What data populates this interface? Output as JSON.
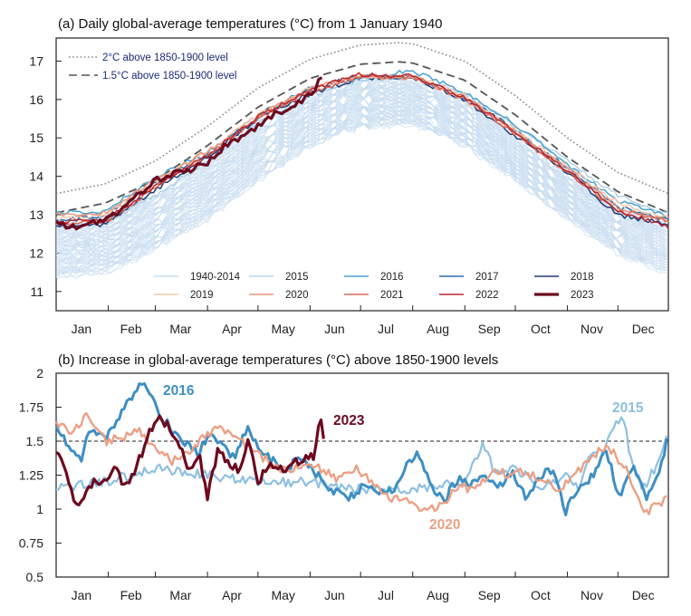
{
  "chart_data": [
    {
      "type": "line",
      "title": "(a) Daily global-average temperatures (°C) from 1 January 1940",
      "xlabel": "",
      "ylabel": "°C",
      "ylim": [
        10.5,
        17.6
      ],
      "grid": false,
      "month_labels": [
        "Jan",
        "Feb",
        "Mar",
        "Apr",
        "May",
        "Jun",
        "Jul",
        "Aug",
        "Sep",
        "Oct",
        "Nov",
        "Dec"
      ],
      "y_ticks": [
        "11",
        "12",
        "13",
        "14",
        "15",
        "16",
        "17"
      ],
      "y_tick_values": [
        11,
        12,
        13,
        14,
        15,
        16,
        17
      ],
      "reference_lines": [
        {
          "name": "2°C above 1850-1900 level",
          "style": "dotted",
          "color": "#8a8a8a",
          "day_of_year": [
            1,
            30,
            60,
            91,
            121,
            152,
            182,
            205,
            213,
            244,
            274,
            305,
            335,
            365
          ],
          "values": [
            13.55,
            13.8,
            14.4,
            15.3,
            16.3,
            17.05,
            17.42,
            17.48,
            17.45,
            17.0,
            16.1,
            15.0,
            14.1,
            13.55
          ]
        },
        {
          "name": "1.5°C above 1850-1900 level",
          "style": "dashed",
          "color": "#555555",
          "day_of_year": [
            1,
            30,
            60,
            91,
            121,
            152,
            182,
            205,
            213,
            244,
            274,
            305,
            335,
            365
          ],
          "values": [
            13.05,
            13.3,
            13.9,
            14.8,
            15.8,
            16.55,
            16.92,
            16.98,
            16.95,
            16.5,
            15.6,
            14.5,
            13.6,
            13.05
          ]
        }
      ],
      "envelope_1940_2014": {
        "name": "1940-2014",
        "color": "#c9def0",
        "day_of_year": [
          1,
          30,
          60,
          91,
          121,
          152,
          182,
          213,
          244,
          274,
          305,
          335,
          365
        ],
        "low": [
          11.4,
          11.5,
          12.1,
          12.9,
          13.9,
          14.8,
          15.3,
          15.35,
          14.8,
          13.9,
          12.9,
          12.0,
          11.45
        ],
        "high": [
          12.8,
          12.9,
          13.5,
          14.4,
          15.4,
          16.1,
          16.5,
          16.5,
          16.0,
          15.0,
          14.0,
          13.2,
          12.8
        ]
      },
      "series": [
        {
          "name": "2015",
          "color": "#a9cde6",
          "width": 1.3,
          "day_of_year": [
            1,
            30,
            60,
            91,
            121,
            152,
            182,
            213,
            244,
            274,
            305,
            335,
            365
          ],
          "values": [
            12.7,
            12.8,
            13.5,
            14.4,
            15.4,
            16.1,
            16.5,
            16.6,
            16.15,
            15.3,
            14.4,
            13.5,
            13.0
          ]
        },
        {
          "name": "2016",
          "color": "#4aa2d2",
          "width": 1.5,
          "day_of_year": [
            1,
            30,
            60,
            91,
            121,
            152,
            182,
            213,
            244,
            274,
            305,
            335,
            365
          ],
          "values": [
            13.05,
            13.1,
            13.95,
            14.65,
            15.5,
            16.3,
            16.55,
            16.75,
            16.2,
            15.35,
            14.3,
            13.35,
            12.95
          ]
        },
        {
          "name": "2017",
          "color": "#2d6fb0",
          "width": 1.5,
          "day_of_year": [
            1,
            30,
            60,
            91,
            121,
            152,
            182,
            213,
            244,
            274,
            305,
            335,
            365
          ],
          "values": [
            12.85,
            12.95,
            13.8,
            14.6,
            15.6,
            16.3,
            16.6,
            16.6,
            16.05,
            15.2,
            14.2,
            13.2,
            12.85
          ]
        },
        {
          "name": "2018",
          "color": "#1c3d7a",
          "width": 1.5,
          "day_of_year": [
            1,
            30,
            60,
            91,
            121,
            152,
            182,
            213,
            244,
            274,
            305,
            335,
            365
          ],
          "values": [
            12.7,
            12.75,
            13.65,
            14.5,
            15.5,
            16.15,
            16.55,
            16.55,
            16.0,
            15.05,
            14.1,
            13.0,
            12.75
          ]
        },
        {
          "name": "2019",
          "color": "#f6c9ad",
          "width": 1.5,
          "day_of_year": [
            1,
            30,
            60,
            91,
            121,
            152,
            182,
            213,
            244,
            274,
            305,
            335,
            365
          ],
          "values": [
            12.9,
            12.95,
            13.85,
            14.65,
            15.6,
            16.3,
            16.6,
            16.6,
            16.1,
            15.2,
            14.25,
            13.3,
            12.9
          ]
        },
        {
          "name": "2020",
          "color": "#e9967a",
          "width": 1.5,
          "day_of_year": [
            1,
            30,
            60,
            91,
            121,
            152,
            182,
            213,
            244,
            274,
            305,
            335,
            365
          ],
          "values": [
            13.0,
            13.05,
            13.9,
            14.65,
            15.55,
            16.3,
            16.6,
            16.55,
            16.0,
            15.15,
            14.2,
            13.2,
            12.85
          ]
        },
        {
          "name": "2021",
          "color": "#dc6a5a",
          "width": 1.5,
          "day_of_year": [
            1,
            30,
            60,
            91,
            121,
            152,
            182,
            213,
            244,
            274,
            305,
            335,
            365
          ],
          "values": [
            12.75,
            12.8,
            13.7,
            14.55,
            15.5,
            16.2,
            16.6,
            16.6,
            16.05,
            15.1,
            14.1,
            13.1,
            12.85
          ]
        },
        {
          "name": "2022",
          "color": "#b8262e",
          "width": 1.5,
          "day_of_year": [
            1,
            30,
            60,
            91,
            121,
            152,
            182,
            213,
            244,
            274,
            305,
            335,
            365
          ],
          "values": [
            12.8,
            12.85,
            13.75,
            14.55,
            15.55,
            16.25,
            16.65,
            16.6,
            16.05,
            15.15,
            14.15,
            13.1,
            12.7
          ]
        },
        {
          "name": "2023",
          "color": "#6d0a1f",
          "width": 3.2,
          "day_of_year": [
            1,
            10,
            20,
            30,
            40,
            50,
            60,
            70,
            80,
            91,
            100,
            110,
            121,
            130,
            140,
            150,
            155,
            160
          ],
          "values": [
            12.8,
            12.65,
            12.75,
            12.9,
            13.1,
            13.55,
            13.9,
            14.05,
            14.15,
            14.35,
            14.75,
            15.0,
            15.3,
            15.6,
            15.8,
            16.05,
            16.3,
            16.65
          ]
        }
      ],
      "legend": [
        "1940-2014",
        "2015",
        "2016",
        "2017",
        "2018",
        "2019",
        "2020",
        "2021",
        "2022",
        "2023"
      ],
      "legend_position": "bottom"
    },
    {
      "type": "line",
      "title": "(b) Increase in global-average temperatures (°C) above 1850-1900 levels",
      "xlabel": "",
      "ylabel": "°C",
      "ylim": [
        0.5,
        2.0
      ],
      "grid": false,
      "month_labels": [
        "Jan",
        "Feb",
        "Mar",
        "Apr",
        "May",
        "Jun",
        "Jul",
        "Aug",
        "Sep",
        "Oct",
        "Nov",
        "Dec"
      ],
      "y_ticks": [
        "0.5",
        "0.75",
        "1",
        "1.25",
        "1.5",
        "1.75",
        "2"
      ],
      "y_tick_values": [
        0.5,
        0.75,
        1.0,
        1.25,
        1.5,
        1.75,
        2.0
      ],
      "threshold": {
        "value": 1.5,
        "style": "dashed",
        "color": "#222222"
      },
      "series": [
        {
          "name": "2015",
          "label": "2015",
          "color": "#8ec0e0",
          "width": 2.2,
          "day_of_year": [
            1,
            30,
            60,
            91,
            121,
            152,
            182,
            213,
            244,
            255,
            262,
            274,
            290,
            305,
            312,
            320,
            326,
            332,
            338,
            343,
            350,
            357,
            365
          ],
          "values": [
            1.15,
            1.2,
            1.3,
            1.25,
            1.2,
            1.2,
            1.15,
            1.15,
            1.2,
            1.5,
            1.25,
            1.3,
            1.15,
            1.25,
            1.15,
            1.45,
            1.4,
            1.6,
            1.7,
            1.35,
            1.15,
            1.3,
            1.55
          ]
        },
        {
          "name": "2016",
          "label": "2016",
          "color": "#3d8fc4",
          "width": 3.0,
          "day_of_year": [
            1,
            8,
            15,
            22,
            30,
            38,
            45,
            52,
            57,
            63,
            70,
            78,
            85,
            92,
            100,
            108,
            115,
            122,
            130,
            138,
            146,
            152,
            160,
            168,
            176,
            184,
            192,
            200,
            208,
            216,
            224,
            232,
            240,
            248,
            256,
            264,
            272,
            280,
            288,
            296,
            304,
            312,
            320,
            328,
            336,
            344,
            352,
            360,
            365
          ],
          "values": [
            1.62,
            1.48,
            1.35,
            1.6,
            1.5,
            1.68,
            1.8,
            1.94,
            1.82,
            1.7,
            1.58,
            1.48,
            1.42,
            1.55,
            1.45,
            1.38,
            1.62,
            1.42,
            1.35,
            1.28,
            1.4,
            1.3,
            1.2,
            1.12,
            1.08,
            1.18,
            1.14,
            1.12,
            1.28,
            1.44,
            1.15,
            1.08,
            1.22,
            1.18,
            1.24,
            1.15,
            1.28,
            1.1,
            1.22,
            1.3,
            0.97,
            1.18,
            1.24,
            1.44,
            1.08,
            1.3,
            1.08,
            1.28,
            1.55
          ]
        },
        {
          "name": "2020",
          "label": "2020",
          "color": "#eba085",
          "width": 2.4,
          "day_of_year": [
            1,
            10,
            20,
            30,
            40,
            50,
            60,
            70,
            80,
            91,
            100,
            110,
            121,
            130,
            140,
            150,
            160,
            170,
            180,
            190,
            200,
            210,
            220,
            230,
            240,
            250,
            260,
            270,
            280,
            290,
            300,
            310,
            320,
            330,
            340,
            350,
            358,
            365
          ],
          "values": [
            1.65,
            1.58,
            1.7,
            1.5,
            1.52,
            1.58,
            1.45,
            1.35,
            1.42,
            1.55,
            1.6,
            1.5,
            1.4,
            1.32,
            1.28,
            1.35,
            1.28,
            1.22,
            1.3,
            1.18,
            1.08,
            1.05,
            0.98,
            1.02,
            1.18,
            1.12,
            1.3,
            1.25,
            1.28,
            1.22,
            1.15,
            1.25,
            1.4,
            1.45,
            1.28,
            0.98,
            1.02,
            1.08
          ]
        },
        {
          "name": "2023",
          "label": "2023",
          "color": "#6d0a1f",
          "width": 3.2,
          "day_of_year": [
            1,
            6,
            12,
            18,
            24,
            30,
            36,
            42,
            48,
            52,
            56,
            62,
            68,
            74,
            80,
            86,
            91,
            97,
            103,
            109,
            115,
            121,
            127,
            133,
            139,
            145,
            150,
            155,
            158,
            160
          ],
          "values": [
            1.42,
            1.3,
            1.02,
            1.12,
            1.2,
            1.18,
            1.3,
            1.15,
            1.3,
            1.4,
            1.55,
            1.7,
            1.6,
            1.5,
            1.28,
            1.4,
            1.1,
            1.42,
            1.35,
            1.28,
            1.5,
            1.2,
            1.32,
            1.28,
            1.32,
            1.35,
            1.38,
            1.4,
            1.68,
            1.5
          ]
        }
      ]
    }
  ]
}
